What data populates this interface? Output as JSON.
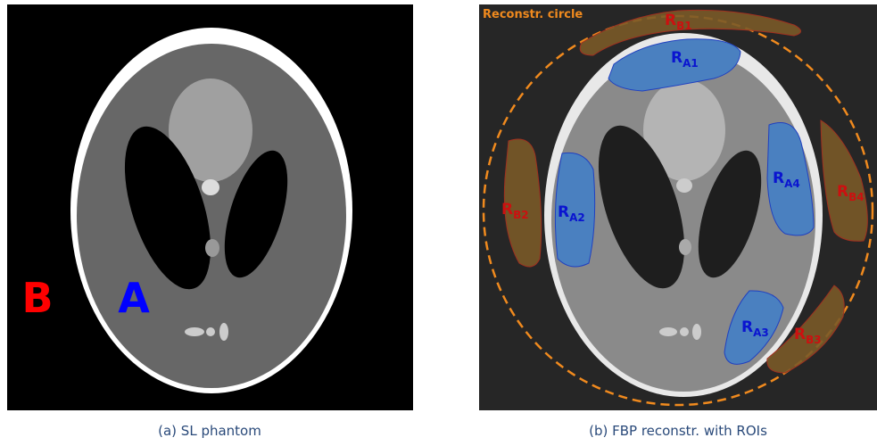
{
  "panels": [
    {
      "caption": "(a) SL phantom",
      "labels": [
        "B",
        "A"
      ]
    },
    {
      "caption": "(b) FBP reconstr. with ROIs",
      "circle_label": "Reconstr. circle",
      "rois": [
        {
          "letter": "R",
          "sub": "B1"
        },
        {
          "letter": "R",
          "sub": "A1"
        },
        {
          "letter": "R",
          "sub": "B2"
        },
        {
          "letter": "R",
          "sub": "A2"
        },
        {
          "letter": "R",
          "sub": "A4"
        },
        {
          "letter": "R",
          "sub": "B4"
        },
        {
          "letter": "R",
          "sub": "A3"
        },
        {
          "letter": "R",
          "sub": "B3"
        }
      ]
    }
  ]
}
